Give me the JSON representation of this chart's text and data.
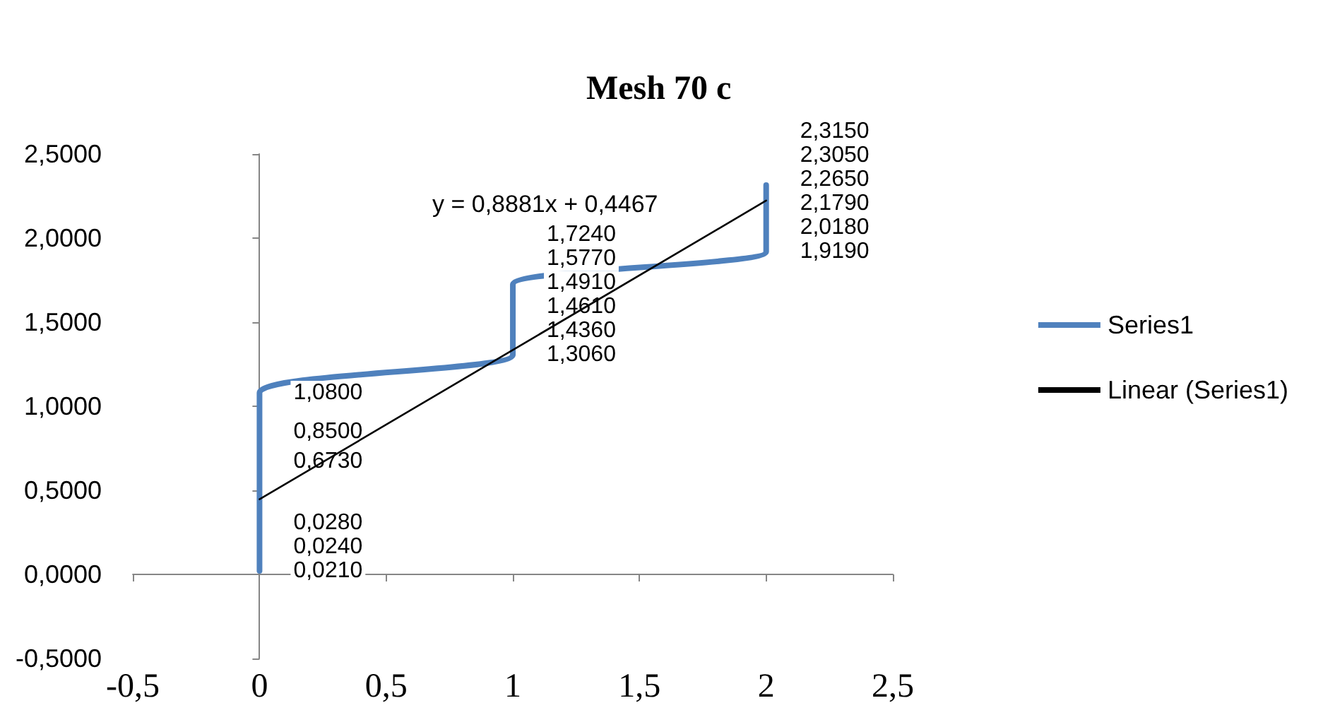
{
  "chart_data": {
    "type": "line",
    "title": "Mesh 70 c",
    "annotations": [
      "y = 0,8881x + 0,4467"
    ],
    "x": [
      0,
      0,
      0,
      0,
      0,
      0,
      1,
      1,
      1,
      1,
      1,
      1,
      2,
      2,
      2,
      2,
      2,
      2
    ],
    "xlim": [
      -0.5,
      2.5
    ],
    "xticks": [
      {
        "value": -0.5,
        "label": "-0,5"
      },
      0,
      {
        "value": 0.5,
        "label": "0,5"
      },
      1,
      {
        "value": 1.5,
        "label": "1,5"
      },
      2,
      {
        "value": 2.5,
        "label": "2,5"
      }
    ],
    "ylim": [
      -0.5,
      2.5
    ],
    "yticks": [
      {
        "value": -0.5,
        "label": "-0,5000"
      },
      {
        "value": 0,
        "label": "0,0000"
      },
      {
        "value": 0.5,
        "label": "0,5000"
      },
      {
        "value": 1,
        "label": "1,0000"
      },
      {
        "value": 1.5,
        "label": "1,5000"
      },
      {
        "value": 2,
        "label": "2,0000"
      },
      {
        "value": 2.5,
        "label": "2,5000"
      }
    ],
    "legend": "right",
    "marker": "none",
    "line_style": "solid",
    "series": [
      {
        "name": "Series1",
        "color": "#4f81bd",
        "values": [
          0.021,
          0.024,
          0.028,
          0.673,
          0.85,
          1.08,
          1.306,
          1.436,
          1.461,
          1.491,
          1.577,
          1.724,
          1.919,
          2.018,
          2.179,
          2.265,
          2.305,
          2.315
        ],
        "value_labels": [
          "0,0210",
          "0,0240",
          "0,0280",
          "0,6730",
          "0,8500",
          "1,0800",
          "1,3060",
          "1,4360",
          "1,4610",
          "1,4910",
          "1,5770",
          "1,7240",
          "1,9190",
          "2,0180",
          "2,1790",
          "2,2650",
          "2,3050",
          "2,3150"
        ]
      },
      {
        "name": "Linear (Series1)",
        "color": "#000000",
        "x": [
          0,
          2
        ],
        "values": [
          0.4467,
          2.2229
        ]
      }
    ]
  }
}
